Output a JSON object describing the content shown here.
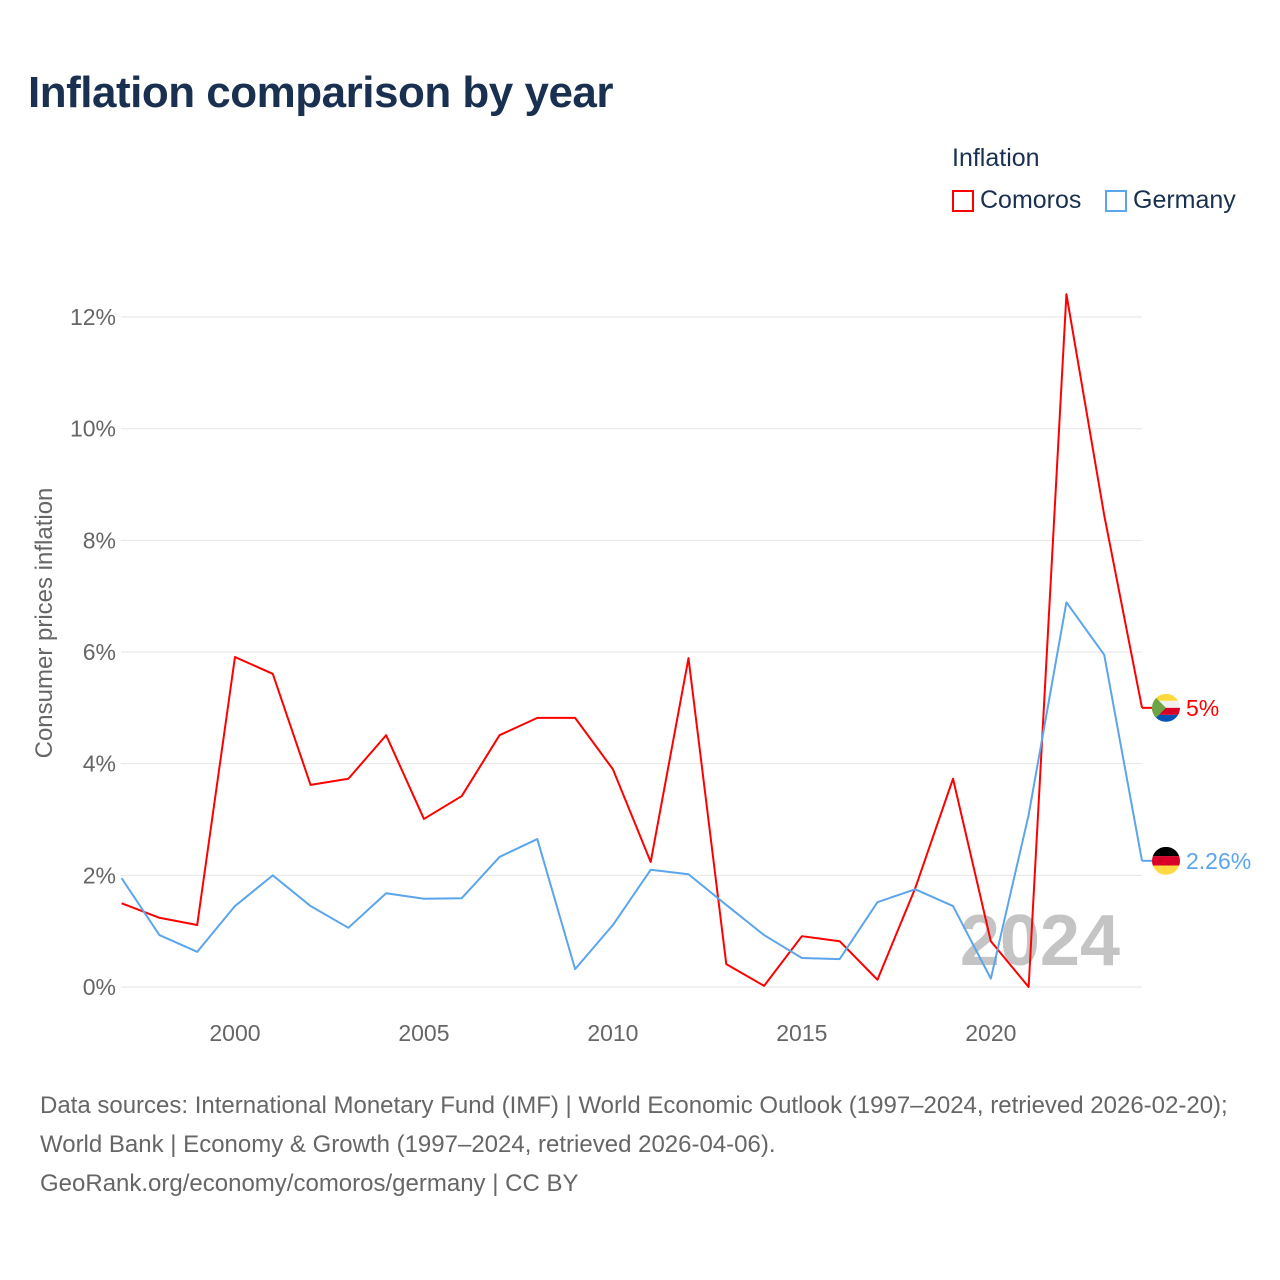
{
  "title": "Inflation comparison by year",
  "legend": {
    "title": "Inflation",
    "items": [
      {
        "name": "Comoros",
        "color": "#ff0000"
      },
      {
        "name": "Germany",
        "color": "#5ba5ec"
      }
    ]
  },
  "chart_data": {
    "type": "line",
    "title": "Inflation comparison by year",
    "ylabel": "Consumer prices inflation",
    "xlabel": "",
    "x": [
      1997,
      1998,
      1999,
      2000,
      2001,
      2002,
      2003,
      2004,
      2005,
      2006,
      2007,
      2008,
      2009,
      2010,
      2011,
      2012,
      2013,
      2014,
      2015,
      2016,
      2017,
      2018,
      2019,
      2020,
      2021,
      2022,
      2023,
      2024
    ],
    "xlim": [
      1997,
      2024
    ],
    "ylim": [
      0,
      12.4
    ],
    "xticks": [
      2000,
      2005,
      2010,
      2015,
      2020
    ],
    "xtick_labels": [
      "2000",
      "2005",
      "2010",
      "2015",
      "2020"
    ],
    "yticks": [
      0,
      2,
      4,
      6,
      8,
      10,
      12
    ],
    "ytick_labels": [
      "0%",
      "2%",
      "4%",
      "6%",
      "8%",
      "10%",
      "12%"
    ],
    "grid": true,
    "legend_position": "top-right",
    "watermark": "2024",
    "series": [
      {
        "name": "Comoros",
        "color": "#ff0000",
        "end_label": "5%",
        "values": [
          1.5,
          1.24,
          1.11,
          5.91,
          5.61,
          3.62,
          3.73,
          4.51,
          3.01,
          3.42,
          4.51,
          4.82,
          4.82,
          3.9,
          2.24,
          5.89,
          0.41,
          0.02,
          0.91,
          0.82,
          0.13,
          1.77,
          3.73,
          0.82,
          0.0,
          12.41,
          8.45,
          5.0
        ]
      },
      {
        "name": "Germany",
        "color": "#5ba5ec",
        "end_label": "2.26%",
        "values": [
          1.95,
          0.93,
          0.63,
          1.45,
          2.0,
          1.45,
          1.06,
          1.68,
          1.58,
          1.59,
          2.33,
          2.65,
          0.32,
          1.11,
          2.1,
          2.02,
          1.47,
          0.93,
          0.52,
          0.5,
          1.52,
          1.75,
          1.45,
          0.15,
          3.08,
          6.89,
          5.95,
          2.26
        ]
      }
    ]
  },
  "source": {
    "line1": "Data sources: International Monetary Fund (IMF) | World Economic Outlook (1997–2024, retrieved 2026-02-20); World Bank | Economy & Growth (1997–2024, retrieved 2026-04-06).",
    "line2": "GeoRank.org/economy/comoros/germany | CC BY"
  }
}
